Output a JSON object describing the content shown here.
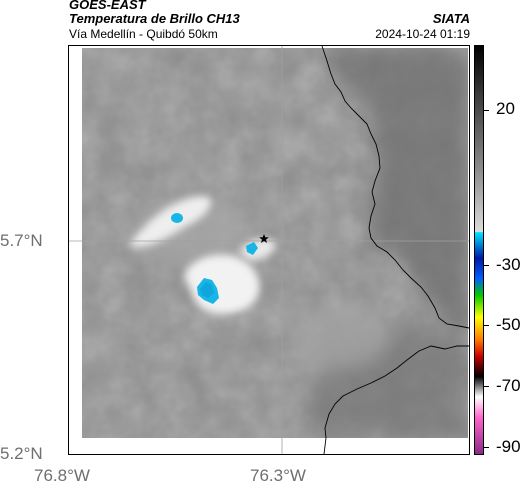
{
  "header": {
    "satellite": "GOES-EAST",
    "product": "Temperatura de Brillo CH13",
    "region": "Vía Medellín - Quibdó 50km",
    "organization": "SIATA",
    "timestamp": "2024-10-24 01:19"
  },
  "map": {
    "lat_labels": [
      "5.7°N",
      "5.2°N"
    ],
    "lon_labels": [
      "76.8°W",
      "76.3°W"
    ],
    "marker_icon": "star-icon",
    "colors": {
      "cloud_gray": "#8c8c8c",
      "warm_gray": "#6b6b6b",
      "cold_cyan": "#17b6e6",
      "border": "#000000"
    }
  },
  "colorbar": {
    "ticks": [
      "20",
      "-30",
      "-50",
      "-70",
      "-90"
    ],
    "colors": [
      "#000000",
      "#6e6e6e",
      "#d6d6d6",
      "#00e5ff",
      "#0018a8",
      "#00c800",
      "#ffff00",
      "#ff7a00",
      "#cc0000",
      "#000000",
      "#ffffff",
      "#ff66cc",
      "#8a2a8a"
    ]
  }
}
